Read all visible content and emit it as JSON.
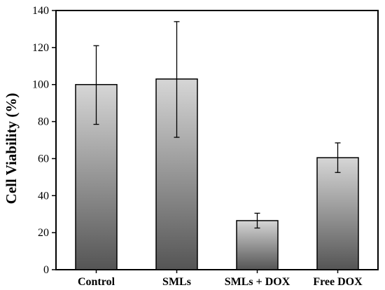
{
  "chart_data": {
    "type": "bar",
    "categories": [
      "Control",
      "SMLs",
      "SMLs + DOX",
      "Free DOX"
    ],
    "values": [
      100,
      103,
      26.5,
      60.5
    ],
    "error_low": [
      78.5,
      71.5,
      22.5,
      52.5
    ],
    "error_high": [
      121,
      134,
      30.5,
      68.5
    ],
    "ylabel": "Cell Viability (%)",
    "xlabel": "",
    "ylim": [
      0,
      140
    ],
    "yticks": [
      0,
      20,
      40,
      60,
      80,
      100,
      120,
      140
    ],
    "grid": false,
    "legend": "none",
    "colors": {
      "bar_top": "#d6d6d6",
      "bar_bottom": "#555555",
      "bar_edge": "#000000",
      "axis": "#000000"
    }
  }
}
